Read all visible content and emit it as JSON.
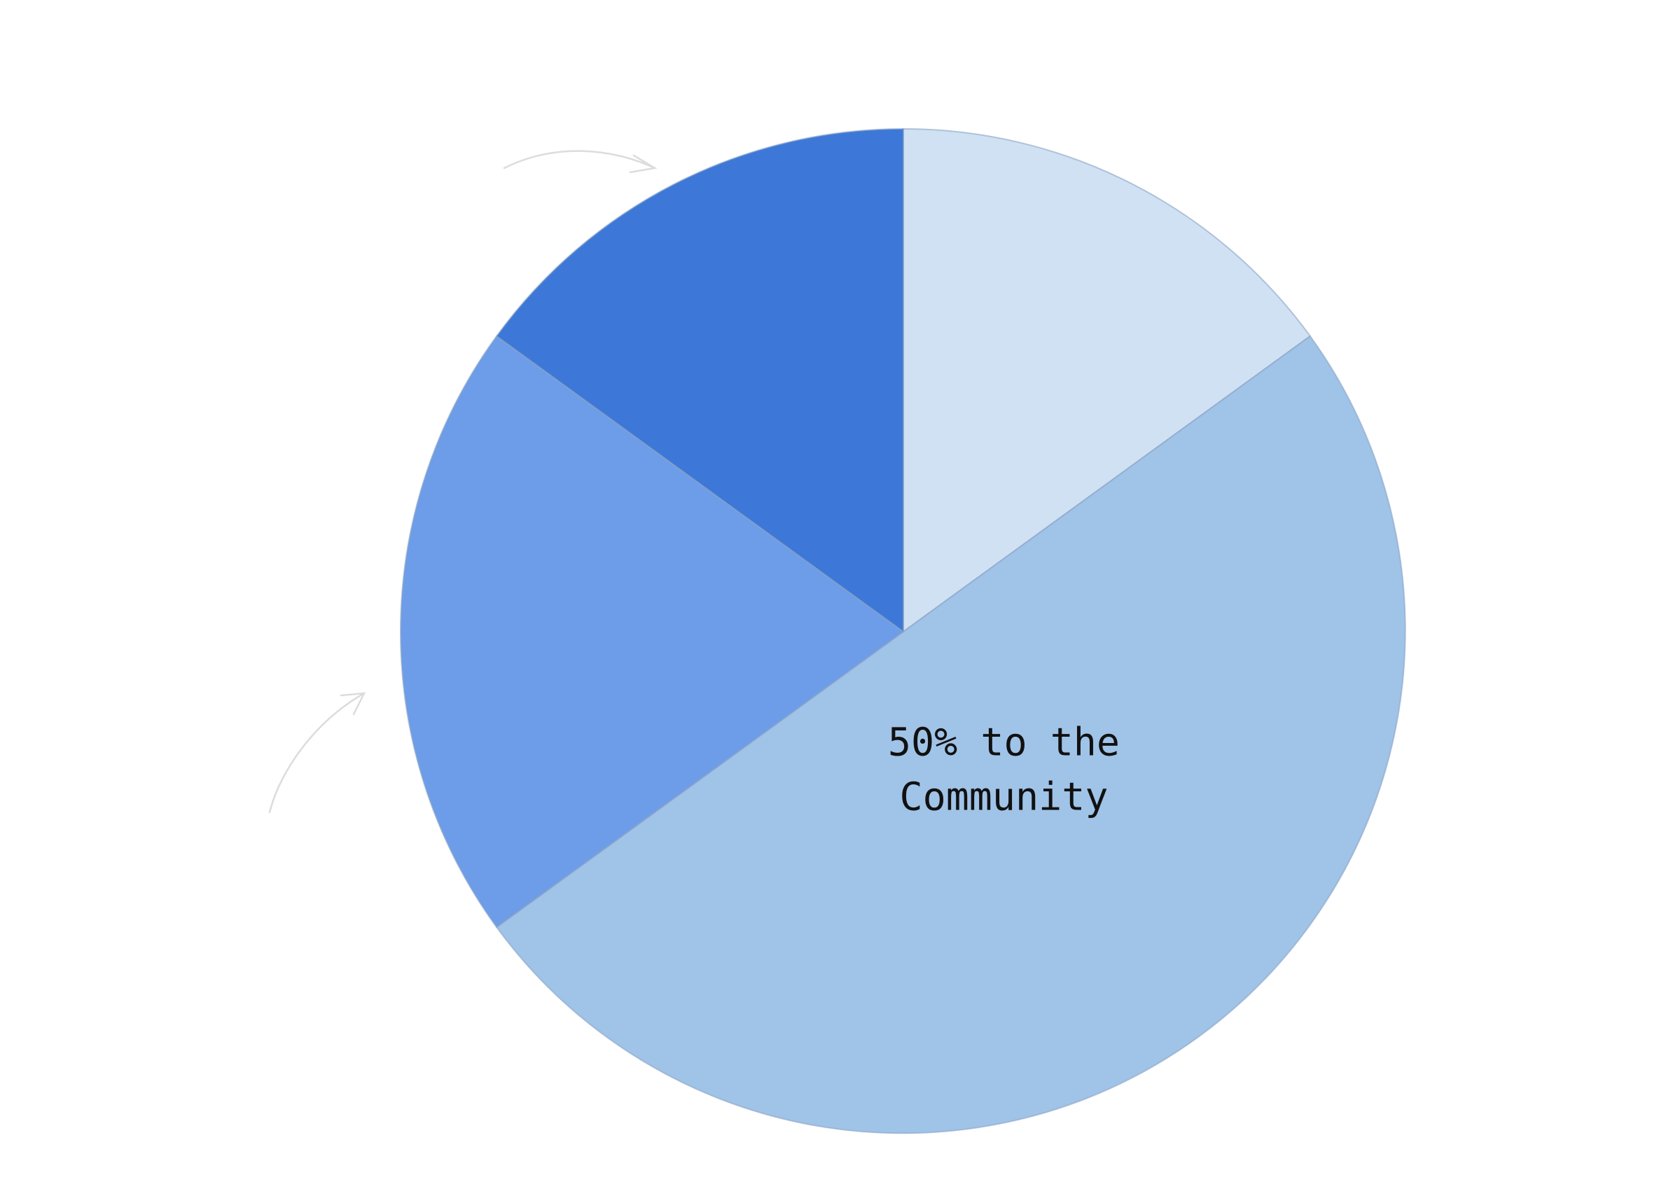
{
  "chart_data": {
    "type": "pie",
    "title": "",
    "start_angle_deg": 0,
    "direction": "clockwise",
    "slices": [
      {
        "value": 15,
        "color": "#cfe1f3",
        "label": ""
      },
      {
        "value": 50,
        "color": "#a0c3e8",
        "label": "50% to the Community"
      },
      {
        "value": 20,
        "color": "#6d9de8",
        "label": ""
      },
      {
        "value": 15,
        "color": "#3d78d8",
        "label": ""
      }
    ]
  }
}
